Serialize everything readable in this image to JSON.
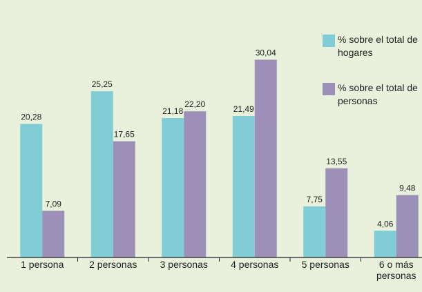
{
  "chart_data": {
    "type": "bar",
    "categories": [
      "1 persona",
      "2 personas",
      "3 personas",
      "4 personas",
      "5 personas",
      "6 o más personas"
    ],
    "series": [
      {
        "name": "% sobre el total de hogares",
        "color": "#80cdd6",
        "values": [
          20.28,
          25.25,
          21.18,
          21.49,
          7.75,
          4.06
        ],
        "value_labels": [
          "20,28",
          "25,25",
          "21,18",
          "21,49",
          "7,75",
          "4,06"
        ]
      },
      {
        "name": "% sobre el total de personas",
        "color": "#9d90b8",
        "values": [
          7.09,
          17.65,
          22.2,
          30.04,
          13.55,
          9.48
        ],
        "value_labels": [
          "7,09",
          "17,65",
          "22,20",
          "30,04",
          "13,55",
          "9,48"
        ]
      }
    ],
    "ylim": [
      0,
      39
    ]
  }
}
